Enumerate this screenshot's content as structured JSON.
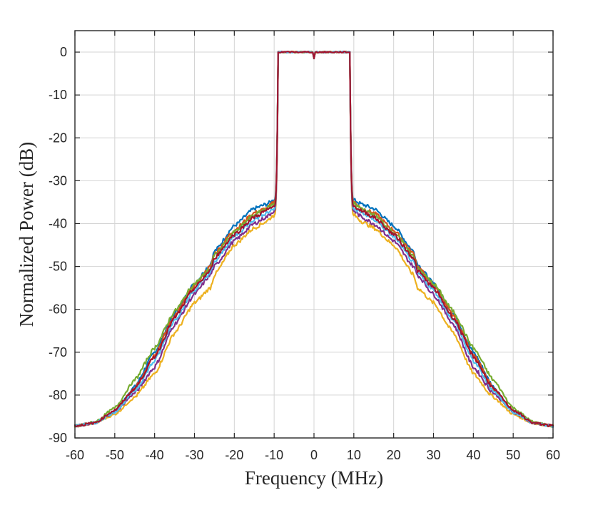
{
  "chart_data": {
    "type": "line",
    "title": "",
    "xlabel": "Frequency (MHz)",
    "ylabel": "Normalized Power (dB)",
    "xlim": [
      -60,
      60
    ],
    "ylim": [
      -90,
      5
    ],
    "xticks": [
      -60,
      -50,
      -40,
      -30,
      -20,
      -10,
      0,
      10,
      20,
      30,
      40,
      50,
      60
    ],
    "yticks": [
      0,
      -10,
      -20,
      -30,
      -40,
      -50,
      -60,
      -70,
      -80,
      -90
    ],
    "grid": true,
    "legend": "none",
    "passband": {
      "from": -9,
      "to": 9,
      "level": 0,
      "dc_notch": -1.5
    },
    "series": [
      {
        "name": "series-blue",
        "color": "#0072BD",
        "x": [
          10,
          12,
          15,
          20,
          25,
          26,
          30,
          35,
          40,
          45,
          50,
          55,
          60
        ],
        "y": [
          -34.5,
          -35.5,
          -36.5,
          -40.5,
          -46.5,
          -49.5,
          -54,
          -61,
          -70,
          -78,
          -84,
          -86.5,
          -87.2
        ]
      },
      {
        "name": "series-orange",
        "color": "#D95319",
        "x": [
          10,
          12,
          15,
          20,
          25,
          26,
          30,
          35,
          40,
          45,
          50,
          55,
          60
        ],
        "y": [
          -35,
          -36.5,
          -37.5,
          -41.5,
          -47,
          -50,
          -54.5,
          -61.5,
          -70.5,
          -78.5,
          -84,
          -86.5,
          -87.2
        ]
      },
      {
        "name": "series-yellow",
        "color": "#EDB120",
        "x": [
          10,
          12,
          15,
          20,
          25,
          26,
          30,
          35,
          40,
          45,
          50,
          55,
          60
        ],
        "y": [
          -38,
          -39.5,
          -41,
          -45,
          -52,
          -55,
          -58.5,
          -65.5,
          -75,
          -80.5,
          -84.5,
          -86.5,
          -87.2
        ]
      },
      {
        "name": "series-purple",
        "color": "#7E2F8E",
        "x": [
          10,
          12,
          15,
          20,
          25,
          26,
          30,
          35,
          40,
          45,
          50,
          55,
          60
        ],
        "y": [
          -37,
          -38.5,
          -40,
          -44,
          -50,
          -52,
          -56.5,
          -63.5,
          -73.5,
          -79.5,
          -84,
          -86.5,
          -87.2
        ]
      },
      {
        "name": "series-green",
        "color": "#77AC30",
        "x": [
          10,
          12,
          15,
          20,
          25,
          26,
          30,
          35,
          40,
          45,
          50,
          55,
          60
        ],
        "y": [
          -35.5,
          -36.5,
          -38,
          -42,
          -47.5,
          -50.5,
          -54,
          -60.5,
          -69,
          -76.5,
          -83,
          -86.3,
          -87.2
        ]
      },
      {
        "name": "series-lightblue",
        "color": "#4DBEEE",
        "x": [
          10,
          12,
          15,
          20,
          25,
          26,
          30,
          35,
          40,
          45,
          50,
          55,
          60
        ],
        "y": [
          -36.5,
          -37.5,
          -39,
          -43,
          -49,
          -51.5,
          -55.5,
          -62.5,
          -72,
          -79,
          -84,
          -86.5,
          -87.2
        ]
      },
      {
        "name": "series-darkred",
        "color": "#A2142F",
        "x": [
          10,
          12,
          15,
          20,
          25,
          26,
          30,
          35,
          40,
          45,
          50,
          55,
          60
        ],
        "y": [
          -36,
          -37,
          -38.5,
          -42.5,
          -48,
          -51,
          -55,
          -62,
          -71,
          -78.5,
          -83.5,
          -86.5,
          -87.2
        ]
      }
    ]
  }
}
